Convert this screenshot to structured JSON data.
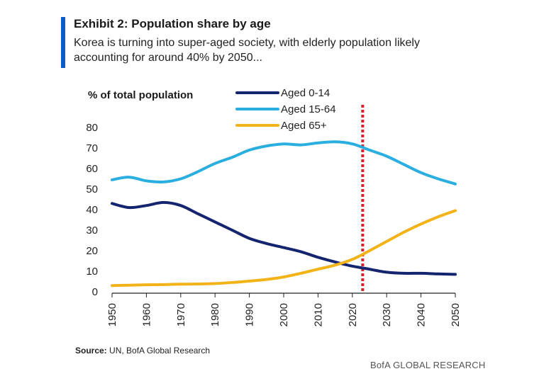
{
  "header": {
    "title": "Exhibit 2: Population share by age",
    "subtitle": "Korea is turning into super-aged society, with elderly population likely accounting for around 40% by 2050..."
  },
  "footer": {
    "source_label": "Source:",
    "source_text": " UN, BofA Global Research",
    "brand": "BofA GLOBAL RESEARCH"
  },
  "colors": {
    "accent": "#0a5cc7",
    "aged_0_14": "#14246e",
    "aged_15_64": "#2aaee0",
    "aged_65_plus": "#f2b318",
    "marker": "#d4232b"
  },
  "chart_data": {
    "type": "line",
    "title": "Exhibit 2: Population share by age",
    "ylabel": "% of total population",
    "xlabel": "",
    "xlim": [
      1950,
      2050
    ],
    "ylim": [
      0,
      80
    ],
    "x_ticks": [
      1950,
      1960,
      1970,
      1980,
      1990,
      2000,
      2010,
      2020,
      2030,
      2040,
      2050
    ],
    "y_ticks": [
      0,
      10,
      20,
      30,
      40,
      50,
      60,
      70,
      80
    ],
    "grid": false,
    "legend_position": "top-center",
    "vertical_marker": {
      "x": 2023,
      "style": "dotted",
      "color": "#d4232b"
    },
    "series": [
      {
        "name": "Aged 0-14",
        "color": "#14246e",
        "x": [
          1950,
          1955,
          1960,
          1965,
          1970,
          1975,
          1980,
          1985,
          1990,
          1995,
          2000,
          2005,
          2010,
          2015,
          2020,
          2025,
          2030,
          2035,
          2040,
          2045,
          2050
        ],
        "values": [
          43,
          41,
          42,
          43.5,
          42,
          38,
          34,
          30,
          26,
          23.5,
          21.5,
          19.5,
          16.8,
          14.5,
          12.5,
          11,
          9.5,
          9,
          9,
          8.7,
          8.5
        ]
      },
      {
        "name": "Aged 15-64",
        "color": "#2aaee0",
        "x": [
          1950,
          1955,
          1960,
          1965,
          1970,
          1975,
          1980,
          1985,
          1990,
          1995,
          2000,
          2005,
          2010,
          2015,
          2020,
          2025,
          2030,
          2035,
          2040,
          2045,
          2050
        ],
        "values": [
          54.5,
          55.8,
          54,
          53.5,
          55,
          58.5,
          62.5,
          65.5,
          69,
          71,
          72,
          71.5,
          72.5,
          73,
          72,
          69,
          66,
          62,
          58,
          55,
          52.5
        ]
      },
      {
        "name": "Aged 65+",
        "color": "#f2b318",
        "x": [
          1950,
          1955,
          1960,
          1965,
          1970,
          1975,
          1980,
          1985,
          1990,
          1995,
          2000,
          2005,
          2010,
          2015,
          2020,
          2025,
          2030,
          2035,
          2040,
          2045,
          2050
        ],
        "values": [
          3,
          3.2,
          3.4,
          3.5,
          3.7,
          3.8,
          4,
          4.5,
          5.2,
          6,
          7.2,
          9,
          11,
          13,
          15.8,
          20,
          24.5,
          29,
          33,
          36.5,
          39.5
        ]
      }
    ]
  }
}
